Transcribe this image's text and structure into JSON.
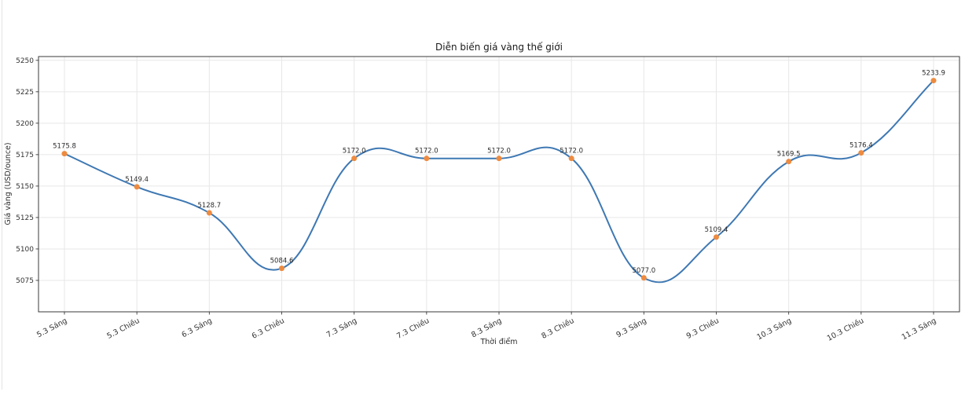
{
  "window": {
    "background": "#ffffff"
  },
  "chart_data": {
    "type": "line",
    "title": "Diễn biến giá vàng thế giới",
    "xlabel": "Thời điểm",
    "ylabel": "Giá vàng (USD/ounce)",
    "categories": [
      "5.3 Sáng",
      "5.3 Chiều",
      "6.3 Sáng",
      "6.3 Chiều",
      "7.3 Sáng",
      "7.3 Chiều",
      "8.3 Sáng",
      "8.3 Chiều",
      "9.3 Sáng",
      "9.3 Chiều",
      "10.3 Sáng",
      "10.3 Chiều",
      "11.3 Sáng"
    ],
    "values": [
      5175.8,
      5149.4,
      5128.7,
      5084.6,
      5172.0,
      5172.0,
      5172.0,
      5172.0,
      5077.0,
      5109.4,
      5169.5,
      5176.4,
      5233.9
    ],
    "point_labels": [
      "5175.8",
      "5149.4",
      "5128.7",
      "5084.6",
      "5172.0",
      "5172.0",
      "5172.0",
      "5172.0",
      "5077.0",
      "5109.4",
      "5169.5",
      "5176.4",
      "5233.9"
    ],
    "y_ticks": [
      5075,
      5100,
      5125,
      5150,
      5175,
      5200,
      5225,
      5250
    ],
    "ylim": [
      5050,
      5253
    ],
    "grid": true,
    "legend": "none",
    "smooth": true,
    "colors": {
      "line": "#3e78b3",
      "marker": "#ee8b40",
      "grid": "#e7e7e7",
      "spine": "#3a3a3a",
      "tick_text": "#333333",
      "point_label_text": "#2b2b2b",
      "title_text": "#1a1a1a"
    }
  }
}
